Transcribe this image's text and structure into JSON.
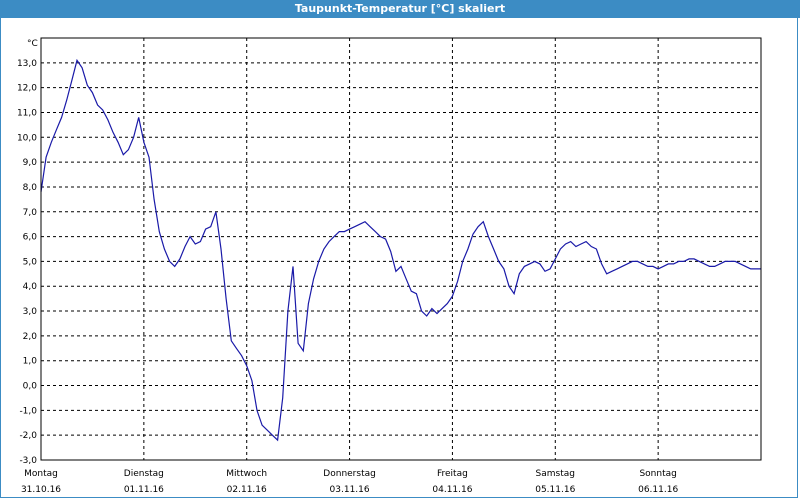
{
  "window": {
    "title": "Taupunkt-Temperatur [°C] skaliert"
  },
  "colors": {
    "titlebar": "#3c8cc4",
    "line": "#1a1aa8",
    "grid": "#000000"
  },
  "chart_data": {
    "type": "line",
    "title": "Taupunkt-Temperatur [°C] skaliert",
    "ylabel": "°C",
    "xlabel": "",
    "grid": true,
    "ylim": [
      -3.0,
      14.0
    ],
    "yticks": [
      "13,0",
      "12,0",
      "11,0",
      "10,0",
      "9,0",
      "8,0",
      "7,0",
      "6,0",
      "5,0",
      "4,0",
      "3,0",
      "2,0",
      "1,0",
      "0,0",
      "-1,0",
      "-2,0",
      "-3,0"
    ],
    "ytick_values": [
      13,
      12,
      11,
      10,
      9,
      8,
      7,
      6,
      5,
      4,
      3,
      2,
      1,
      0,
      -1,
      -2,
      -3
    ],
    "xlim": [
      0,
      7
    ],
    "x_unit": "days",
    "days": [
      {
        "weekday": "Montag",
        "date": "31.10.16"
      },
      {
        "weekday": "Dienstag",
        "date": "01.11.16"
      },
      {
        "weekday": "Mittwoch",
        "date": "02.11.16"
      },
      {
        "weekday": "Donnerstag",
        "date": "03.11.16"
      },
      {
        "weekday": "Freitag",
        "date": "04.11.16"
      },
      {
        "weekday": "Samstag",
        "date": "05.11.16"
      },
      {
        "weekday": "Sonntag",
        "date": "06.11.16"
      }
    ],
    "series": [
      {
        "x": [
          0,
          0.05,
          0.1,
          0.15,
          0.2,
          0.25,
          0.3,
          0.35,
          0.4,
          0.45,
          0.5,
          0.55,
          0.6,
          0.65,
          0.7,
          0.75,
          0.8,
          0.85,
          0.9,
          0.95,
          1.0,
          1.05,
          1.1,
          1.15,
          1.2,
          1.25,
          1.3,
          1.35,
          1.4,
          1.45,
          1.5,
          1.55,
          1.6,
          1.65,
          1.7,
          1.75,
          1.8,
          1.85,
          1.9,
          1.95,
          2.0,
          2.05,
          2.1,
          2.15,
          2.2,
          2.25,
          2.3,
          2.35,
          2.4,
          2.45,
          2.5,
          2.55,
          2.6,
          2.65,
          2.7,
          2.75,
          2.8,
          2.85,
          2.9,
          2.95,
          3.0,
          3.05,
          3.1,
          3.15,
          3.2,
          3.25,
          3.3,
          3.35,
          3.4,
          3.45,
          3.5,
          3.55,
          3.6,
          3.65,
          3.7,
          3.75,
          3.8,
          3.85,
          3.9,
          3.95,
          4.0,
          4.05,
          4.1,
          4.15,
          4.2,
          4.25,
          4.3,
          4.35,
          4.4,
          4.45,
          4.5,
          4.55,
          4.6,
          4.65,
          4.7,
          4.75,
          4.8,
          4.85,
          4.9,
          4.95,
          5.0,
          5.05,
          5.1,
          5.15,
          5.2,
          5.25,
          5.3,
          5.35,
          5.4,
          5.45,
          5.5,
          5.55,
          5.6,
          5.65,
          5.7,
          5.75,
          5.8,
          5.85,
          5.9,
          5.95,
          6.0,
          6.05,
          6.1,
          6.15,
          6.2,
          6.25,
          6.3,
          6.35,
          6.4,
          6.45,
          6.5,
          6.55,
          6.6,
          6.65,
          6.7,
          6.75,
          6.8,
          6.85,
          6.9,
          6.95,
          7.0
        ],
        "values": [
          7.8,
          9.2,
          9.8,
          10.3,
          10.8,
          11.5,
          12.3,
          13.1,
          12.8,
          12.1,
          11.8,
          11.3,
          11.1,
          10.7,
          10.2,
          9.8,
          9.3,
          9.5,
          10.0,
          10.8,
          9.8,
          9.2,
          7.5,
          6.2,
          5.5,
          5.0,
          4.8,
          5.1,
          5.6,
          6.0,
          5.7,
          5.8,
          6.3,
          6.4,
          7.0,
          5.5,
          3.5,
          1.8,
          1.5,
          1.2,
          0.8,
          0.2,
          -1.0,
          -1.6,
          -1.8,
          -2.0,
          -2.2,
          -0.5,
          3.0,
          4.8,
          1.7,
          1.4,
          3.3,
          4.3,
          5.0,
          5.5,
          5.8,
          6.0,
          6.2,
          6.2,
          6.3,
          6.4,
          6.5,
          6.6,
          6.4,
          6.2,
          6.0,
          5.9,
          5.4,
          4.6,
          4.8,
          4.3,
          3.8,
          3.7,
          3.0,
          2.8,
          3.1,
          2.9,
          3.1,
          3.3,
          3.6,
          4.2,
          5.0,
          5.5,
          6.1,
          6.4,
          6.6,
          6.0,
          5.5,
          5.0,
          4.7,
          4.0,
          3.7,
          4.5,
          4.8,
          4.9,
          5.0,
          4.9,
          4.6,
          4.7,
          5.1,
          5.5,
          5.7,
          5.8,
          5.6,
          5.7,
          5.8,
          5.6,
          5.5,
          4.9,
          4.5,
          4.6,
          4.7,
          4.8,
          4.9,
          5.0,
          5.0,
          4.9,
          4.8,
          4.8,
          4.7,
          4.8,
          4.9,
          4.9,
          5.0,
          5.0,
          5.1,
          5.1,
          5.0,
          4.9,
          4.8,
          4.8,
          4.9,
          5.0,
          5.0,
          5.0,
          4.9,
          4.8,
          4.7,
          4.7,
          4.7
        ]
      }
    ]
  }
}
